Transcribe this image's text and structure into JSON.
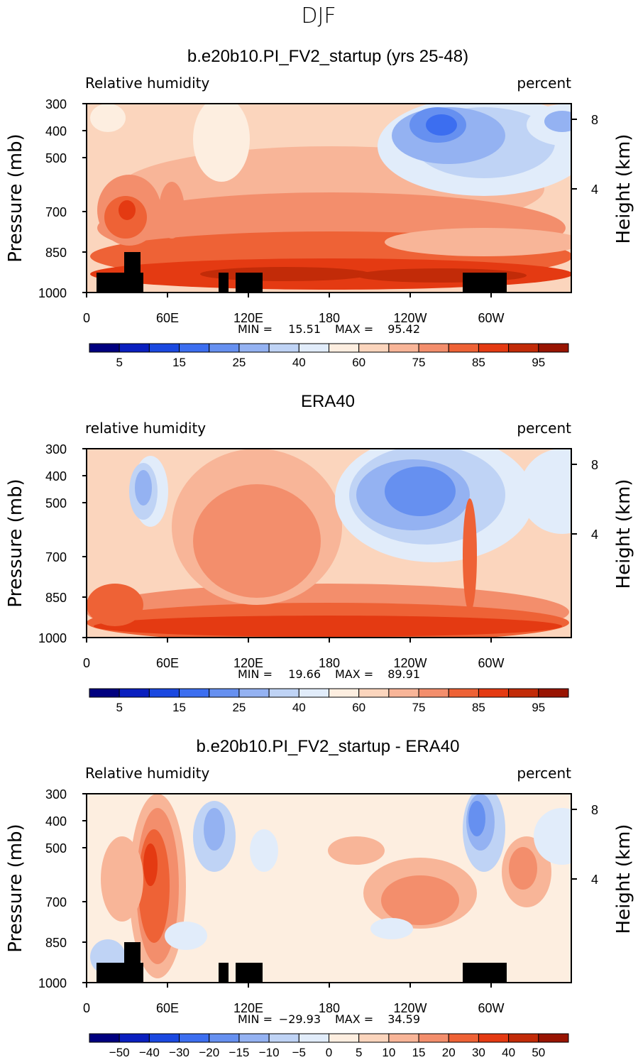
{
  "page_title": "DJF",
  "chart_data": [
    {
      "type": "heatmap",
      "title": "b.e20b10.PI_FV2_startup (yrs 25-48)",
      "left_label": "Relative humidity",
      "right_label": "percent",
      "ylabel": "Pressure (mb)",
      "ylabel_right": "Height (km)",
      "xticks": [
        "0",
        "60E",
        "120E",
        "180",
        "120W",
        "60W"
      ],
      "yticks": [
        "300",
        "400",
        "500",
        "700",
        "850",
        "1000"
      ],
      "yticks_right": [
        "8",
        "4"
      ],
      "stats": {
        "min": "15.51",
        "max": "95.42"
      },
      "colorbar_labels": [
        "5",
        "15",
        "25",
        "40",
        "60",
        "75",
        "85",
        "95"
      ],
      "topography": true
    },
    {
      "type": "heatmap",
      "title": "ERA40",
      "left_label": "relative humidity",
      "right_label": "percent",
      "ylabel": "Pressure (mb)",
      "ylabel_right": "Height (km)",
      "xticks": [
        "0",
        "60E",
        "120E",
        "180",
        "120W",
        "60W"
      ],
      "yticks": [
        "300",
        "400",
        "500",
        "700",
        "850",
        "1000"
      ],
      "yticks_right": [
        "8",
        "4"
      ],
      "stats": {
        "min": "19.66",
        "max": "89.91"
      },
      "colorbar_labels": [
        "5",
        "15",
        "25",
        "40",
        "60",
        "75",
        "85",
        "95"
      ],
      "topography": false
    },
    {
      "type": "heatmap",
      "title": "b.e20b10.PI_FV2_startup - ERA40",
      "left_label": "Relative humidity",
      "right_label": "percent",
      "ylabel": "Pressure (mb)",
      "ylabel_right": "Height (km)",
      "xticks": [
        "0",
        "60E",
        "120E",
        "180",
        "120W",
        "60W"
      ],
      "yticks": [
        "300",
        "400",
        "500",
        "700",
        "850",
        "1000"
      ],
      "yticks_right": [
        "8",
        "4"
      ],
      "stats": {
        "min": "−29.93",
        "max": "34.59"
      },
      "colorbar_labels": [
        "−50",
        "−40",
        "−30",
        "−20",
        "−15",
        "−10",
        "−5",
        "0",
        "5",
        "10",
        "15",
        "20",
        "30",
        "40",
        "50"
      ],
      "topography": true
    }
  ],
  "colorbar_colors": [
    "#00007f",
    "#0a1fbf",
    "#1a48e0",
    "#3c6ef0",
    "#6690f0",
    "#94b2f2",
    "#bfd3f5",
    "#e1ecfa",
    "#fdeee0",
    "#fbd5bd",
    "#f8b598",
    "#f38e6c",
    "#ee6236",
    "#e43a12",
    "#c22b08",
    "#981402",
    "#7a0000"
  ]
}
